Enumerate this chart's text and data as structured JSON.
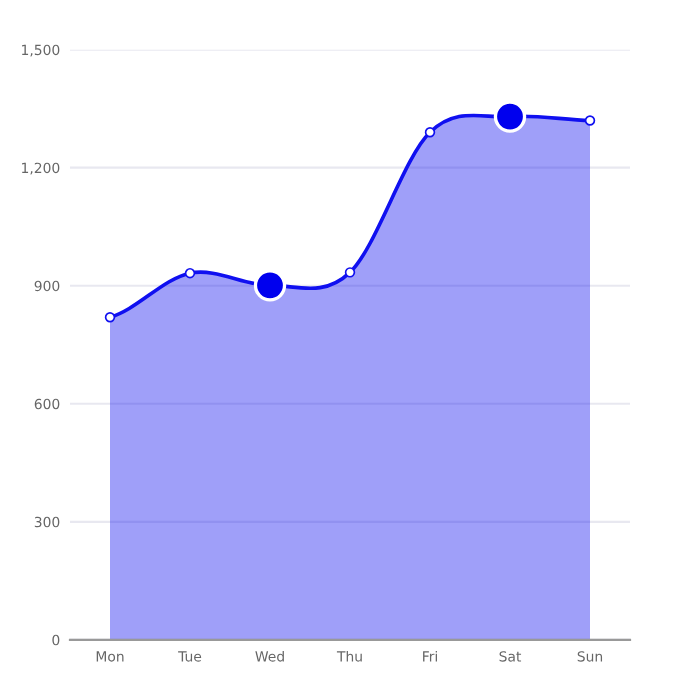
{
  "chart_data": {
    "type": "area",
    "categories": [
      "Mon",
      "Tue",
      "Wed",
      "Thu",
      "Fri",
      "Sat",
      "Sun"
    ],
    "series": [
      {
        "color": "#1010f0",
        "values": [
          820,
          932,
          901,
          934,
          1290,
          1330,
          1320
        ]
      },
      {
        "type": "scatter",
        "color": "#0000ee",
        "x": [
          "Wed",
          "Sat"
        ],
        "values": [
          901,
          1330
        ]
      }
    ],
    "ylim": [
      0,
      1500
    ],
    "yticks": [
      0,
      300,
      600,
      900,
      {
        "value": 1200,
        "label": "1,200"
      },
      {
        "value": 1500,
        "label": "1,500"
      }
    ],
    "grid": "y",
    "marker": "circle"
  }
}
